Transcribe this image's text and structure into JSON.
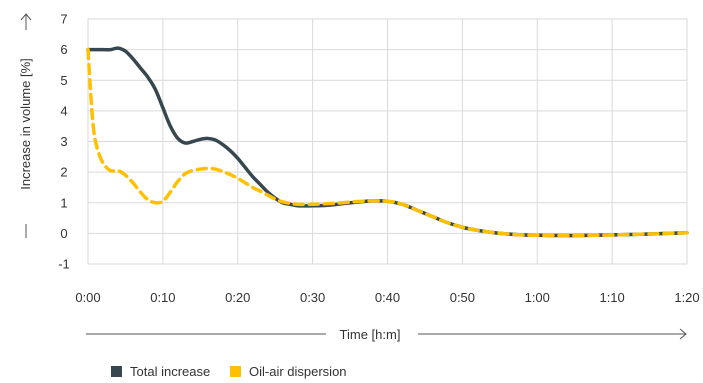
{
  "chart_data": {
    "type": "line",
    "title": "",
    "xlabel": "Time [h:m]",
    "ylabel": "Increase in volume [%]",
    "x_tick_labels": [
      "0:00",
      "0:10",
      "0:20",
      "0:30",
      "0:40",
      "0:50",
      "1:00",
      "1:10",
      "1:20"
    ],
    "x_tick_values": [
      0,
      10,
      20,
      30,
      40,
      50,
      60,
      70,
      80
    ],
    "y_tick_labels": [
      "-1",
      "0",
      "1",
      "2",
      "3",
      "4",
      "5",
      "6",
      "7"
    ],
    "y_tick_values": [
      -1,
      0,
      1,
      2,
      3,
      4,
      5,
      6,
      7
    ],
    "xlim": [
      0,
      80
    ],
    "ylim": [
      -1,
      7
    ],
    "grid": true,
    "legend_position": "bottom-left",
    "series": [
      {
        "name": "Total increase",
        "color": "#37474f",
        "style": "solid",
        "points": [
          [
            0,
            6
          ],
          [
            2,
            6
          ],
          [
            3,
            6
          ],
          [
            4,
            6.05
          ],
          [
            5,
            5.95
          ],
          [
            6,
            5.7
          ],
          [
            7,
            5.4
          ],
          [
            8,
            5.1
          ],
          [
            9,
            4.7
          ],
          [
            10,
            4.1
          ],
          [
            11,
            3.5
          ],
          [
            12,
            3.1
          ],
          [
            13,
            2.95
          ],
          [
            14,
            3.0
          ],
          [
            15,
            3.07
          ],
          [
            16,
            3.1
          ],
          [
            17,
            3.05
          ],
          [
            18,
            2.9
          ],
          [
            19,
            2.7
          ],
          [
            20,
            2.45
          ],
          [
            21,
            2.15
          ],
          [
            22,
            1.85
          ],
          [
            23,
            1.6
          ],
          [
            24,
            1.35
          ],
          [
            25,
            1.15
          ],
          [
            26,
            1.0
          ],
          [
            27,
            0.95
          ],
          [
            28,
            0.9
          ],
          [
            30,
            0.9
          ],
          [
            32,
            0.92
          ],
          [
            34,
            0.97
          ],
          [
            36,
            1.02
          ],
          [
            38,
            1.06
          ],
          [
            40,
            1.05
          ],
          [
            42,
            0.95
          ],
          [
            44,
            0.75
          ],
          [
            46,
            0.55
          ],
          [
            48,
            0.35
          ],
          [
            50,
            0.2
          ],
          [
            52,
            0.1
          ],
          [
            54,
            0.03
          ],
          [
            56,
            -0.02
          ],
          [
            58,
            -0.05
          ],
          [
            60,
            -0.06
          ],
          [
            63,
            -0.07
          ],
          [
            66,
            -0.07
          ],
          [
            70,
            -0.05
          ],
          [
            75,
            -0.02
          ],
          [
            80,
            0.02
          ]
        ]
      },
      {
        "name": "Oil-air dispersion",
        "color": "#ffc000",
        "style": "dashed",
        "points": [
          [
            0,
            6
          ],
          [
            0.3,
            4.8
          ],
          [
            0.7,
            3.5
          ],
          [
            1.2,
            2.8
          ],
          [
            2,
            2.3
          ],
          [
            3,
            2.05
          ],
          [
            4,
            2.05
          ],
          [
            5,
            1.9
          ],
          [
            6,
            1.65
          ],
          [
            7,
            1.35
          ],
          [
            8,
            1.1
          ],
          [
            9,
            1.0
          ],
          [
            10,
            1.05
          ],
          [
            11,
            1.35
          ],
          [
            12,
            1.7
          ],
          [
            13,
            1.95
          ],
          [
            14,
            2.05
          ],
          [
            15,
            2.1
          ],
          [
            16,
            2.12
          ],
          [
            17,
            2.1
          ],
          [
            18,
            2.02
          ],
          [
            19,
            1.92
          ],
          [
            20,
            1.8
          ],
          [
            21,
            1.65
          ],
          [
            22,
            1.5
          ],
          [
            23,
            1.38
          ],
          [
            24,
            1.25
          ],
          [
            25,
            1.12
          ],
          [
            26,
            1.03
          ],
          [
            27,
            0.98
          ],
          [
            28,
            0.95
          ],
          [
            30,
            0.95
          ],
          [
            32,
            0.97
          ],
          [
            34,
            1.0
          ],
          [
            36,
            1.04
          ],
          [
            38,
            1.06
          ],
          [
            40,
            1.05
          ],
          [
            42,
            0.95
          ],
          [
            44,
            0.75
          ],
          [
            46,
            0.55
          ],
          [
            48,
            0.35
          ],
          [
            50,
            0.2
          ],
          [
            52,
            0.1
          ],
          [
            54,
            0.03
          ],
          [
            56,
            -0.02
          ],
          [
            58,
            -0.05
          ],
          [
            60,
            -0.06
          ],
          [
            63,
            -0.07
          ],
          [
            66,
            -0.07
          ],
          [
            70,
            -0.05
          ],
          [
            75,
            -0.02
          ],
          [
            80,
            0.02
          ]
        ]
      }
    ]
  },
  "legend": [
    {
      "label": "Total increase",
      "color": "#37474f"
    },
    {
      "label": "Oil-air dispersion",
      "color": "#ffc000"
    }
  ]
}
